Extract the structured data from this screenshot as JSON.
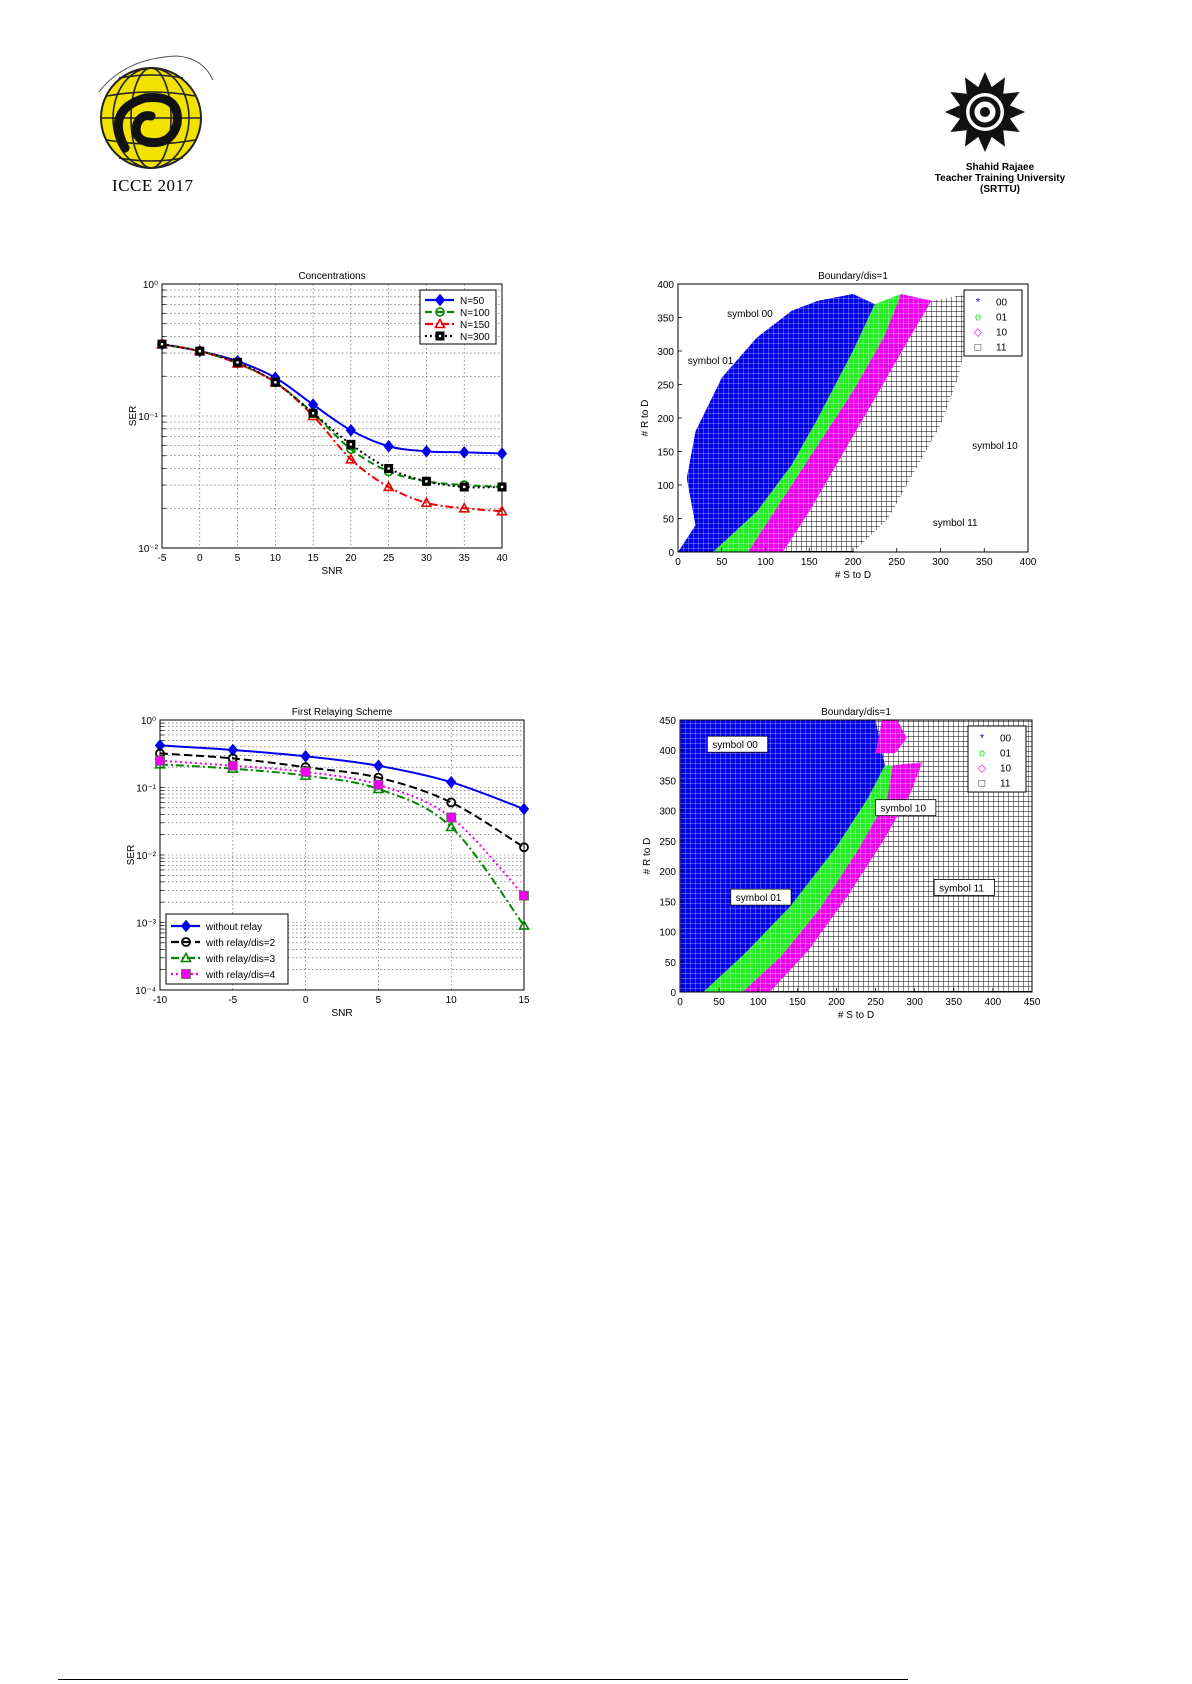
{
  "header": {
    "left_logo_text": "ICCE 2017",
    "left_logo_arc_text": "2nd Iranian Conference on Communication Engineering",
    "right_logo_lines": [
      "Shahid Rajaee",
      "Teacher Training University",
      "(SRTTU)"
    ]
  },
  "colors": {
    "blue": "#0000ee",
    "green": "#008800",
    "red": "#ee0000",
    "magenta": "#ee00ee",
    "black": "#000000",
    "lightgreen": "#22ee22",
    "pink": "#ff44ff"
  },
  "chart_data": [
    {
      "type": "line",
      "title": "Concentrations",
      "xlabel": "SNR",
      "ylabel": "SER",
      "yscale": "log",
      "xlim": [
        -5,
        40
      ],
      "ylim": [
        0.01,
        1
      ],
      "x": [
        -5,
        0,
        5,
        10,
        15,
        20,
        25,
        30,
        35,
        40
      ],
      "xticks": [
        "-5",
        "0",
        "5",
        "10",
        "15",
        "20",
        "25",
        "30",
        "35",
        "40"
      ],
      "yticks": [
        "10⁻²",
        "10⁻¹",
        "10⁰"
      ],
      "grid": true,
      "legend_position": "top-right",
      "series": [
        {
          "name": "N=50",
          "color": "#0000ee",
          "dash": "",
          "marker": "diamond",
          "values": [
            0.35,
            0.31,
            0.26,
            0.195,
            0.122,
            0.078,
            0.059,
            0.054,
            0.053,
            0.052
          ]
        },
        {
          "name": "N=100",
          "color": "#008800",
          "dash": "7 4",
          "marker": "circle-minus",
          "values": [
            0.35,
            0.31,
            0.25,
            0.18,
            0.105,
            0.056,
            0.038,
            0.032,
            0.03,
            0.029
          ]
        },
        {
          "name": "N=150",
          "color": "#ee0000",
          "dash": "8 3 2 3",
          "marker": "triangle",
          "values": [
            0.35,
            0.31,
            0.25,
            0.18,
            0.1,
            0.047,
            0.029,
            0.022,
            0.02,
            0.019
          ]
        },
        {
          "name": "N=300",
          "color": "#000000",
          "dash": "2 3",
          "marker": "square-dot",
          "values": [
            0.35,
            0.31,
            0.255,
            0.18,
            0.105,
            0.061,
            0.04,
            0.032,
            0.029,
            0.029
          ]
        }
      ]
    },
    {
      "type": "scatter",
      "title": "Boundary/dis=1",
      "xlabel": "# S to D",
      "ylabel": "# R to D",
      "xlim": [
        0,
        400
      ],
      "ylim": [
        0,
        400
      ],
      "xticks": [
        "0",
        "50",
        "100",
        "150",
        "200",
        "250",
        "300",
        "350",
        "400"
      ],
      "yticks": [
        "0",
        "50",
        "100",
        "150",
        "200",
        "250",
        "300",
        "350",
        "400"
      ],
      "legend_position": "top-right",
      "legend": [
        {
          "name": "00",
          "marker": "*",
          "color": "#0000ee"
        },
        {
          "name": "01",
          "marker": "o",
          "color": "#22ee22"
        },
        {
          "name": "10",
          "marker": "◇",
          "color": "#ee00ee"
        },
        {
          "name": "11",
          "marker": "□",
          "color": "#000000"
        }
      ],
      "regions": [
        {
          "name": "symbol 00",
          "color": "#0000ee",
          "points": [
            [
              0,
              0
            ],
            [
              20,
              40
            ],
            [
              10,
              110
            ],
            [
              20,
              180
            ],
            [
              50,
              260
            ],
            [
              90,
              320
            ],
            [
              130,
              360
            ],
            [
              160,
              375
            ],
            [
              200,
              385
            ],
            [
              225,
              370
            ],
            [
              200,
              300
            ],
            [
              160,
              200
            ],
            [
              130,
              130
            ],
            [
              90,
              60
            ],
            [
              40,
              0
            ]
          ]
        },
        {
          "name": "symbol 01",
          "color": "#22ee22",
          "points": [
            [
              40,
              0
            ],
            [
              90,
              60
            ],
            [
              130,
              130
            ],
            [
              160,
              200
            ],
            [
              200,
              300
            ],
            [
              225,
              370
            ],
            [
              255,
              385
            ],
            [
              235,
              320
            ],
            [
              200,
              240
            ],
            [
              160,
              160
            ],
            [
              120,
              80
            ],
            [
              80,
              0
            ]
          ]
        },
        {
          "name": "symbol 10",
          "color": "#ee00ee",
          "points": [
            [
              80,
              0
            ],
            [
              120,
              80
            ],
            [
              160,
              160
            ],
            [
              200,
              240
            ],
            [
              235,
              320
            ],
            [
              255,
              385
            ],
            [
              290,
              375
            ],
            [
              265,
              320
            ],
            [
              230,
              240
            ],
            [
              190,
              150
            ],
            [
              150,
              60
            ],
            [
              120,
              0
            ]
          ]
        },
        {
          "name": "symbol 11",
          "color": "#000000",
          "points": [
            [
              120,
              0
            ],
            [
              150,
              60
            ],
            [
              190,
              150
            ],
            [
              230,
              240
            ],
            [
              265,
              320
            ],
            [
              290,
              375
            ],
            [
              330,
              385
            ],
            [
              330,
              320
            ],
            [
              320,
              260
            ],
            [
              300,
              190
            ],
            [
              270,
              120
            ],
            [
              240,
              50
            ],
            [
              200,
              0
            ]
          ]
        }
      ],
      "annotations": [
        {
          "text": "symbol 00",
          "x": 55,
          "y": 352
        },
        {
          "text": "symbol 01",
          "x": 10,
          "y": 282
        },
        {
          "text": "symbol 10",
          "x": 335,
          "y": 155
        },
        {
          "text": "symbol 11",
          "x": 290,
          "y": 40
        }
      ]
    },
    {
      "type": "line",
      "title": "First Relaying Scheme",
      "xlabel": "SNR",
      "ylabel": "SER",
      "yscale": "log",
      "xlim": [
        -10,
        15
      ],
      "ylim": [
        0.0001,
        1
      ],
      "x": [
        -10,
        -5,
        0,
        5,
        10,
        15
      ],
      "xticks": [
        "-10",
        "-5",
        "0",
        "5",
        "10",
        "15"
      ],
      "yticks": [
        "10⁻⁴",
        "10⁻³",
        "10⁻²",
        "10⁻¹",
        "10⁰"
      ],
      "grid": true,
      "legend_position": "bottom-left",
      "series": [
        {
          "name": "without relay",
          "color": "#0000ee",
          "dash": "",
          "marker": "diamond",
          "values": [
            0.42,
            0.36,
            0.29,
            0.21,
            0.12,
            0.048
          ]
        },
        {
          "name": "with relay/dis=2",
          "color": "#000000",
          "dash": "8 4",
          "marker": "circle",
          "values": [
            0.32,
            0.27,
            0.2,
            0.14,
            0.06,
            0.013
          ]
        },
        {
          "name": "with relay/dis=3",
          "color": "#008800",
          "dash": "8 3 2 3",
          "marker": "triangle",
          "values": [
            0.22,
            0.19,
            0.15,
            0.095,
            0.026,
            0.0009
          ]
        },
        {
          "name": "with relay/dis=4",
          "color": "#ee00ee",
          "dash": "2 3",
          "marker": "square",
          "values": [
            0.25,
            0.21,
            0.17,
            0.11,
            0.036,
            0.0025
          ]
        }
      ]
    },
    {
      "type": "scatter",
      "title": "Boundary/dis=1",
      "xlabel": "# S to D",
      "ylabel": "# R to D",
      "xlim": [
        0,
        450
      ],
      "ylim": [
        0,
        450
      ],
      "xticks": [
        "0",
        "50",
        "100",
        "150",
        "200",
        "250",
        "300",
        "350",
        "400",
        "450"
      ],
      "yticks": [
        "0",
        "50",
        "100",
        "150",
        "200",
        "250",
        "300",
        "350",
        "400",
        "450"
      ],
      "legend_position": "top-right",
      "legend": [
        {
          "name": "00",
          "marker": "*",
          "color": "#0000ee"
        },
        {
          "name": "01",
          "marker": "o",
          "color": "#22ee22"
        },
        {
          "name": "10",
          "marker": "◇",
          "color": "#ee00ee"
        },
        {
          "name": "11",
          "marker": "□",
          "color": "#000000"
        }
      ],
      "regions": [
        {
          "name": "symbol 11",
          "color": "#000000",
          "points": [
            [
              0,
              0
            ],
            [
              450,
              0
            ],
            [
              450,
              450
            ],
            [
              0,
              450
            ]
          ]
        },
        {
          "name": "symbol 00",
          "color": "#0000ee",
          "points": [
            [
              0,
              0
            ],
            [
              30,
              0
            ],
            [
              80,
              60
            ],
            [
              140,
              140
            ],
            [
              200,
              240
            ],
            [
              240,
              320
            ],
            [
              262,
              375
            ],
            [
              250,
              450
            ],
            [
              0,
              450
            ]
          ]
        },
        {
          "name": "symbol 01",
          "color": "#22ee22",
          "points": [
            [
              30,
              0
            ],
            [
              80,
              0
            ],
            [
              130,
              60
            ],
            [
              180,
              140
            ],
            [
              230,
              240
            ],
            [
              265,
              320
            ],
            [
              272,
              375
            ],
            [
              262,
              375
            ],
            [
              240,
              320
            ],
            [
              200,
              240
            ],
            [
              140,
              140
            ],
            [
              80,
              60
            ]
          ]
        },
        {
          "name": "symbol 10",
          "color": "#ee00ee",
          "points": [
            [
              80,
              0
            ],
            [
              115,
              0
            ],
            [
              165,
              70
            ],
            [
              215,
              160
            ],
            [
              260,
              250
            ],
            [
              295,
              330
            ],
            [
              310,
              380
            ],
            [
              272,
              375
            ],
            [
              265,
              320
            ],
            [
              230,
              240
            ],
            [
              180,
              140
            ],
            [
              130,
              60
            ]
          ]
        },
        {
          "name": "symbol 10 top",
          "color": "#ee00ee",
          "points": [
            [
              250,
              395
            ],
            [
              258,
              450
            ],
            [
              278,
              450
            ],
            [
              290,
              420
            ],
            [
              275,
              395
            ]
          ]
        }
      ],
      "annotations": [
        {
          "text": "symbol 00",
          "x": 40,
          "y": 405
        },
        {
          "text": "symbol 10",
          "x": 255,
          "y": 300
        },
        {
          "text": "symbol 01",
          "x": 70,
          "y": 152
        },
        {
          "text": "symbol 11",
          "x": 330,
          "y": 168
        }
      ]
    }
  ]
}
